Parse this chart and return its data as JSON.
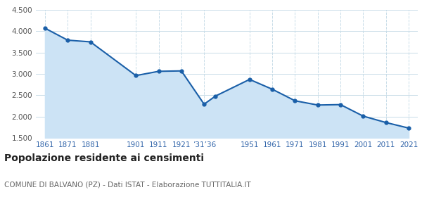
{
  "years": [
    1861,
    1871,
    1881,
    1901,
    1911,
    1921,
    1931,
    1936,
    1951,
    1961,
    1971,
    1981,
    1991,
    2001,
    2011,
    2021
  ],
  "population": [
    4070,
    3790,
    3750,
    2960,
    3060,
    3070,
    2290,
    2480,
    2870,
    2640,
    2370,
    2270,
    2280,
    2010,
    1860,
    1730
  ],
  "line_color": "#1a5fa8",
  "fill_color": "#cce3f5",
  "marker": "o",
  "markersize": 3.5,
  "linewidth": 1.5,
  "ylim": [
    1500,
    4500
  ],
  "yticks": [
    1500,
    2000,
    2500,
    3000,
    3500,
    4000,
    4500
  ],
  "xtick_positions": [
    1861,
    1871,
    1881,
    1901,
    1911,
    1921,
    1931,
    1951,
    1961,
    1971,
    1981,
    1991,
    2001,
    2011,
    2021
  ],
  "xtick_labels": [
    "1861",
    "1871",
    "1881",
    "1901",
    "1911",
    "1921",
    "’31’36",
    "1951",
    "1961",
    "1971",
    "1981",
    "1991",
    "2001",
    "2011",
    "2021"
  ],
  "title": "Popolazione residente ai censimenti",
  "subtitle": "COMUNE DI BALVANO (PZ) - Dati ISTAT - Elaborazione TUTTITALIA.IT",
  "title_fontsize": 10,
  "subtitle_fontsize": 7.5,
  "bg_color": "#ffffff",
  "grid_color": "#c8dce8",
  "ylabel_color": "#555555",
  "xlabel_color": "#3366aa"
}
